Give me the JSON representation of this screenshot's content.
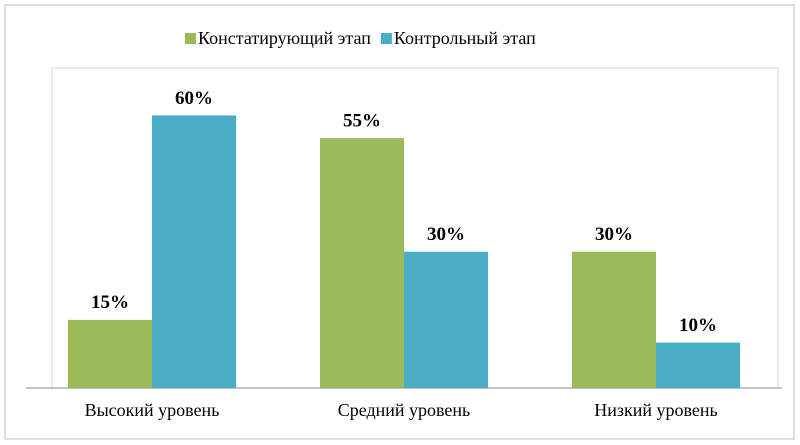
{
  "chart_data": {
    "type": "bar",
    "categories": [
      "Высокий уровень",
      "Средний уровень",
      "Низкий уровень"
    ],
    "series": [
      {
        "name": "Констатирующий этап",
        "color": "#9bbb59",
        "values": [
          15,
          55,
          30
        ],
        "value_labels": [
          "15%",
          "55%",
          "30%"
        ]
      },
      {
        "name": "Контрольный этап",
        "color": "#4bacc6",
        "values": [
          60,
          30,
          10
        ],
        "value_labels": [
          "60%",
          "30%",
          "10%"
        ]
      }
    ],
    "ylim": [
      0,
      70
    ],
    "legend": "top"
  }
}
